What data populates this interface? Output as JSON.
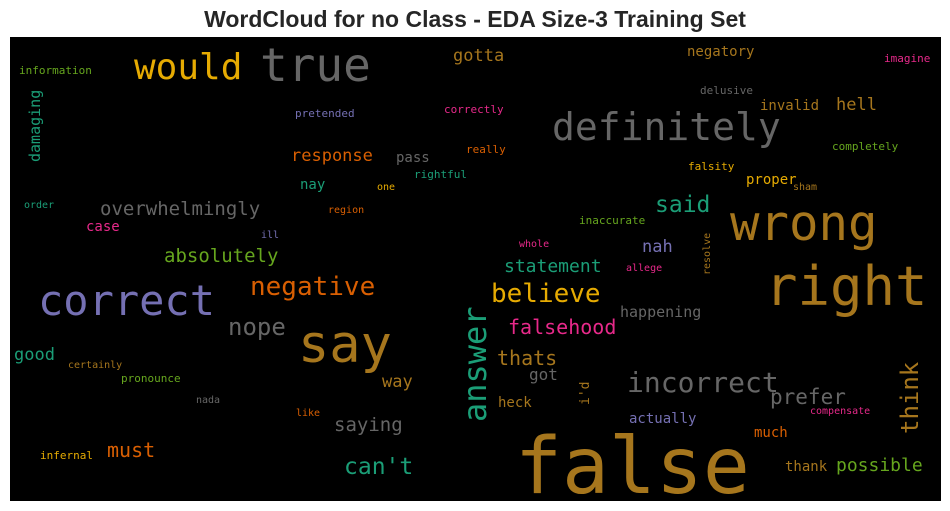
{
  "chart_data": {
    "type": "wordcloud",
    "title": "WordCloud for no Class - EDA Size-3 Training Set",
    "background": "#000000",
    "words": [
      {
        "text": "false",
        "weight": 100,
        "color": "#a6761d"
      },
      {
        "text": "right",
        "weight": 74,
        "color": "#a6761d"
      },
      {
        "text": "wrong",
        "weight": 70,
        "color": "#a6761d"
      },
      {
        "text": "true",
        "weight": 63,
        "color": "#666666"
      },
      {
        "text": "correct",
        "weight": 60,
        "color": "#7570b3"
      },
      {
        "text": "say",
        "weight": 72,
        "color": "#a6761d"
      },
      {
        "text": "definitely",
        "weight": 53,
        "color": "#666666"
      },
      {
        "text": "would",
        "weight": 51,
        "color": "#e6ab02"
      },
      {
        "text": "answer",
        "weight": 45,
        "color": "#1b9e77"
      },
      {
        "text": "incorrect",
        "weight": 40,
        "color": "#666666"
      },
      {
        "text": "believe",
        "weight": 37,
        "color": "#e6ab02"
      },
      {
        "text": "negative",
        "weight": 36,
        "color": "#d95f02"
      },
      {
        "text": "think",
        "weight": 34,
        "color": "#a6761d"
      },
      {
        "text": "nope",
        "weight": 33,
        "color": "#666666"
      },
      {
        "text": "said",
        "weight": 32,
        "color": "#1b9e77"
      },
      {
        "text": "can't",
        "weight": 31,
        "color": "#1b9e77"
      },
      {
        "text": "prefer",
        "weight": 30,
        "color": "#666666"
      },
      {
        "text": "falsehood",
        "weight": 28,
        "color": "#e7298a"
      },
      {
        "text": "thats",
        "weight": 27,
        "color": "#a6761d"
      },
      {
        "text": "statement",
        "weight": 25,
        "color": "#1b9e77"
      },
      {
        "text": "absolutely",
        "weight": 27,
        "color": "#66a61e"
      },
      {
        "text": "overwhelmingly",
        "weight": 27,
        "color": "#666666"
      },
      {
        "text": "must",
        "weight": 28,
        "color": "#d95f02"
      },
      {
        "text": "saying",
        "weight": 26,
        "color": "#666666"
      },
      {
        "text": "possible",
        "weight": 25,
        "color": "#66a61e"
      },
      {
        "text": "hell",
        "weight": 24,
        "color": "#a6761d"
      },
      {
        "text": "nah",
        "weight": 24,
        "color": "#7570b3"
      },
      {
        "text": "response",
        "weight": 24,
        "color": "#d95f02"
      },
      {
        "text": "gotta",
        "weight": 24,
        "color": "#a6761d"
      },
      {
        "text": "way",
        "weight": 24,
        "color": "#a6761d"
      },
      {
        "text": "good",
        "weight": 24,
        "color": "#1b9e77"
      },
      {
        "text": "damaging",
        "weight": 21,
        "color": "#1b9e77"
      },
      {
        "text": "happening",
        "weight": 20,
        "color": "#666666"
      },
      {
        "text": "got",
        "weight": 22,
        "color": "#666666"
      },
      {
        "text": "invalid",
        "weight": 20,
        "color": "#a6761d"
      },
      {
        "text": "negatory",
        "weight": 20,
        "color": "#a6761d"
      },
      {
        "text": "pass",
        "weight": 20,
        "color": "#666666"
      },
      {
        "text": "proper",
        "weight": 20,
        "color": "#e6ab02"
      },
      {
        "text": "actually",
        "weight": 20,
        "color": "#7570b3"
      },
      {
        "text": "heck",
        "weight": 20,
        "color": "#a6761d"
      },
      {
        "text": "much",
        "weight": 20,
        "color": "#d95f02"
      },
      {
        "text": "thank",
        "weight": 20,
        "color": "#a6761d"
      },
      {
        "text": "case",
        "weight": 20,
        "color": "#e7298a"
      },
      {
        "text": "nay",
        "weight": 19,
        "color": "#1b9e77"
      },
      {
        "text": "i'd",
        "weight": 19,
        "color": "#a6761d"
      },
      {
        "text": "resolve",
        "weight": 11,
        "color": "#a6761d"
      },
      {
        "text": "completely",
        "weight": 14,
        "color": "#66a61e"
      },
      {
        "text": "imagine",
        "weight": 14,
        "color": "#e7298a"
      },
      {
        "text": "information",
        "weight": 14,
        "color": "#66a61e"
      },
      {
        "text": "pretended",
        "weight": 14,
        "color": "#7570b3"
      },
      {
        "text": "correctly",
        "weight": 14,
        "color": "#e7298a"
      },
      {
        "text": "delusive",
        "weight": 14,
        "color": "#666666"
      },
      {
        "text": "really",
        "weight": 14,
        "color": "#d95f02"
      },
      {
        "text": "rightful",
        "weight": 14,
        "color": "#1b9e77"
      },
      {
        "text": "falsity",
        "weight": 14,
        "color": "#e6ab02"
      },
      {
        "text": "sham",
        "weight": 13,
        "color": "#a6761d"
      },
      {
        "text": "one",
        "weight": 13,
        "color": "#e6ab02"
      },
      {
        "text": "order",
        "weight": 13,
        "color": "#1b9e77"
      },
      {
        "text": "region",
        "weight": 13,
        "color": "#d95f02"
      },
      {
        "text": "inaccurate",
        "weight": 14,
        "color": "#66a61e"
      },
      {
        "text": "ill",
        "weight": 13,
        "color": "#7570b3"
      },
      {
        "text": "whole",
        "weight": 13,
        "color": "#e7298a"
      },
      {
        "text": "allege",
        "weight": 13,
        "color": "#e7298a"
      },
      {
        "text": "certainly",
        "weight": 13,
        "color": "#a6761d"
      },
      {
        "text": "pronounce",
        "weight": 14,
        "color": "#66a61e"
      },
      {
        "text": "nada",
        "weight": 13,
        "color": "#666666"
      },
      {
        "text": "like",
        "weight": 13,
        "color": "#d95f02"
      },
      {
        "text": "compensate",
        "weight": 13,
        "color": "#e7298a"
      },
      {
        "text": "infernal",
        "weight": 14,
        "color": "#e6ab02"
      }
    ]
  }
}
